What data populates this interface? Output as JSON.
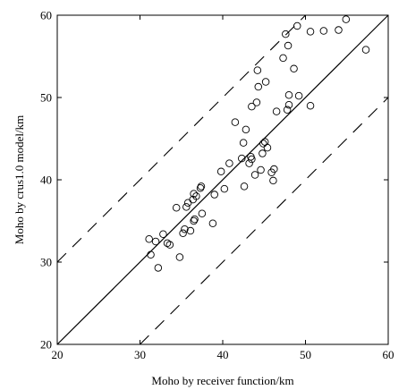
{
  "chart_data": {
    "type": "scatter",
    "title": "",
    "xlabel": "Moho by receiver function/km",
    "ylabel": "Moho by crus1.0 model/km",
    "xlim": [
      20,
      60
    ],
    "ylim": [
      20,
      60
    ],
    "xticks": [
      "20",
      "30",
      "40",
      "50",
      "60"
    ],
    "yticks": [
      "20",
      "30",
      "40",
      "50",
      "60"
    ],
    "grid": false,
    "legend": "none",
    "marker": "open-circle",
    "reference_lines": [
      {
        "name": "1:1",
        "style": "solid",
        "offset": 0
      },
      {
        "name": "+10 km",
        "style": "dashed",
        "offset": 10
      },
      {
        "name": "-10 km",
        "style": "dashed",
        "offset": -10
      }
    ],
    "points": [
      {
        "x": 31.1,
        "y": 32.8
      },
      {
        "x": 31.3,
        "y": 30.9
      },
      {
        "x": 31.9,
        "y": 32.5
      },
      {
        "x": 32.2,
        "y": 29.3
      },
      {
        "x": 32.8,
        "y": 33.4
      },
      {
        "x": 33.3,
        "y": 32.3
      },
      {
        "x": 33.6,
        "y": 32.1
      },
      {
        "x": 34.4,
        "y": 36.6
      },
      {
        "x": 34.8,
        "y": 30.6
      },
      {
        "x": 35.2,
        "y": 33.5
      },
      {
        "x": 35.4,
        "y": 34.0
      },
      {
        "x": 35.6,
        "y": 36.7
      },
      {
        "x": 35.8,
        "y": 37.2
      },
      {
        "x": 36.1,
        "y": 33.8
      },
      {
        "x": 36.4,
        "y": 37.6
      },
      {
        "x": 36.5,
        "y": 38.3
      },
      {
        "x": 36.5,
        "y": 35.0
      },
      {
        "x": 36.6,
        "y": 35.2
      },
      {
        "x": 36.8,
        "y": 38.0
      },
      {
        "x": 37.3,
        "y": 39.0
      },
      {
        "x": 37.4,
        "y": 39.2
      },
      {
        "x": 37.5,
        "y": 35.9
      },
      {
        "x": 38.8,
        "y": 34.7
      },
      {
        "x": 39.0,
        "y": 38.2
      },
      {
        "x": 39.8,
        "y": 41.0
      },
      {
        "x": 40.2,
        "y": 38.9
      },
      {
        "x": 40.8,
        "y": 42.0
      },
      {
        "x": 41.5,
        "y": 47.0
      },
      {
        "x": 42.3,
        "y": 42.6
      },
      {
        "x": 42.5,
        "y": 44.5
      },
      {
        "x": 42.6,
        "y": 39.2
      },
      {
        "x": 42.8,
        "y": 46.1
      },
      {
        "x": 43.2,
        "y": 42.0
      },
      {
        "x": 43.4,
        "y": 42.8
      },
      {
        "x": 43.5,
        "y": 42.5
      },
      {
        "x": 43.5,
        "y": 48.9
      },
      {
        "x": 43.9,
        "y": 40.6
      },
      {
        "x": 44.1,
        "y": 49.4
      },
      {
        "x": 44.2,
        "y": 53.3
      },
      {
        "x": 44.3,
        "y": 51.3
      },
      {
        "x": 44.6,
        "y": 41.2
      },
      {
        "x": 44.8,
        "y": 43.2
      },
      {
        "x": 44.9,
        "y": 44.4
      },
      {
        "x": 45.1,
        "y": 44.6
      },
      {
        "x": 45.2,
        "y": 51.9
      },
      {
        "x": 45.4,
        "y": 43.9
      },
      {
        "x": 45.9,
        "y": 40.9
      },
      {
        "x": 46.1,
        "y": 39.9
      },
      {
        "x": 46.2,
        "y": 41.3
      },
      {
        "x": 46.5,
        "y": 48.3
      },
      {
        "x": 47.3,
        "y": 54.8
      },
      {
        "x": 47.6,
        "y": 57.7
      },
      {
        "x": 47.8,
        "y": 48.5
      },
      {
        "x": 47.9,
        "y": 56.3
      },
      {
        "x": 48.0,
        "y": 49.1
      },
      {
        "x": 48.0,
        "y": 50.3
      },
      {
        "x": 48.6,
        "y": 53.5
      },
      {
        "x": 49.0,
        "y": 58.7
      },
      {
        "x": 49.2,
        "y": 50.2
      },
      {
        "x": 50.6,
        "y": 49.0
      },
      {
        "x": 50.6,
        "y": 58.0
      },
      {
        "x": 52.2,
        "y": 58.1
      },
      {
        "x": 54.0,
        "y": 58.2
      },
      {
        "x": 54.9,
        "y": 59.5
      },
      {
        "x": 57.3,
        "y": 55.8
      }
    ]
  }
}
